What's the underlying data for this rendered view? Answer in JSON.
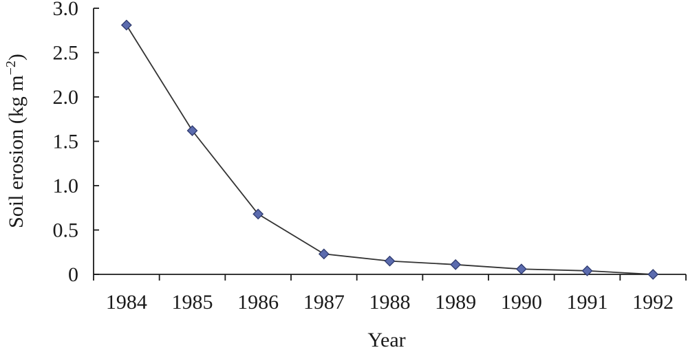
{
  "chart_data": {
    "type": "line",
    "title": "",
    "xlabel": "Year",
    "ylabel_main": "Soil erosion (kg m",
    "ylabel_sup": "−2",
    "ylabel_close": ")",
    "categories": [
      "1984",
      "1985",
      "1986",
      "1987",
      "1988",
      "1989",
      "1990",
      "1991",
      "1992"
    ],
    "series": [
      {
        "values": [
          2.81,
          1.62,
          0.68,
          0.23,
          0.15,
          0.11,
          0.06,
          0.04,
          0.0
        ]
      }
    ],
    "yticks": [
      "0",
      "0.5",
      "1.0",
      "1.5",
      "2.0",
      "2.5",
      "3.0"
    ],
    "ylim": [
      0,
      3.0
    ],
    "grid": false,
    "legend": "none",
    "colors": {
      "line": "#333333",
      "marker_fill": "#5B6BAE",
      "marker_stroke": "#2E3A6E",
      "axis": "#1a1a1a"
    }
  }
}
